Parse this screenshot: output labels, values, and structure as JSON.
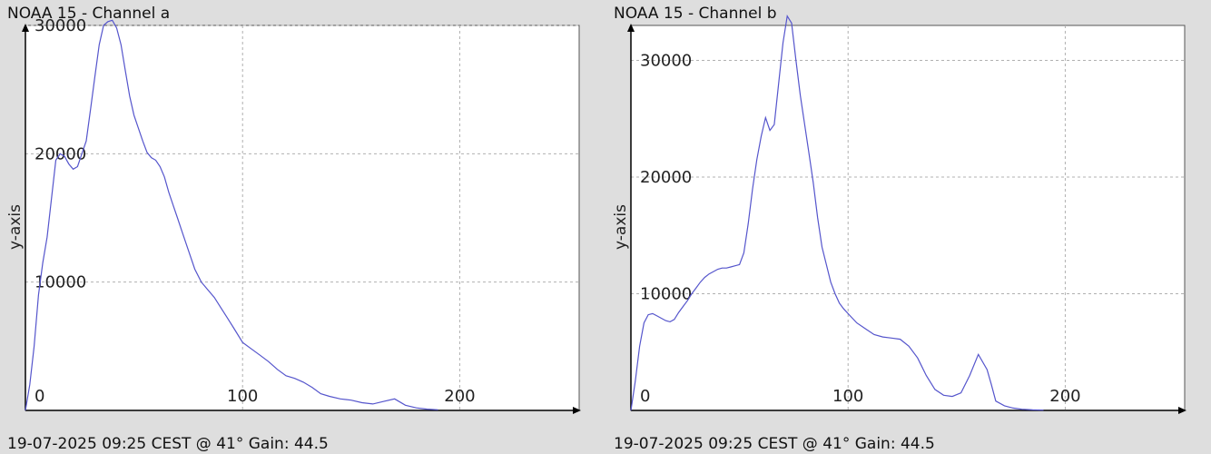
{
  "accent_color": "#5555cc",
  "chart_data": [
    {
      "type": "line",
      "title": "NOAA 15 - Channel a",
      "ylabel": "y-axis",
      "footer": "19-07-2025 09:25 CEST @ 41° Gain: 44.5",
      "xlim": [
        0,
        255
      ],
      "ylim": [
        0,
        30000
      ],
      "x_ticks": [
        0,
        100,
        200
      ],
      "y_ticks": [
        10000,
        20000,
        30000
      ],
      "grid": true,
      "series": [
        {
          "x": [
            0,
            2,
            4,
            6,
            8,
            10,
            12,
            14,
            16,
            18,
            20,
            22,
            24,
            26,
            28,
            30,
            32,
            34,
            36,
            38,
            40,
            42,
            44,
            46,
            48,
            50,
            52,
            54,
            56,
            58,
            60,
            62,
            64,
            66,
            68,
            70,
            72,
            75,
            78,
            81,
            84,
            87,
            90,
            93,
            96,
            100,
            104,
            108,
            112,
            116,
            120,
            124,
            128,
            132,
            136,
            140,
            145,
            150,
            155,
            160,
            165,
            170,
            175,
            180,
            185,
            190
          ],
          "values": [
            0,
            2000,
            5000,
            9000,
            11500,
            13500,
            16500,
            19500,
            20000,
            19800,
            19200,
            18800,
            19000,
            20000,
            21000,
            23500,
            26000,
            28500,
            30000,
            30300,
            30400,
            29800,
            28500,
            26500,
            24500,
            23000,
            22000,
            21000,
            20100,
            19700,
            19500,
            19000,
            18200,
            17000,
            16000,
            15000,
            14000,
            12500,
            11000,
            10000,
            9400,
            8800,
            8000,
            7200,
            6400,
            5300,
            4800,
            4300,
            3800,
            3200,
            2700,
            2500,
            2200,
            1800,
            1300,
            1100,
            900,
            800,
            600,
            500,
            700,
            900,
            400,
            200,
            100,
            50
          ]
        }
      ]
    },
    {
      "type": "line",
      "title": "NOAA 15 - Channel b",
      "ylabel": "y-axis",
      "footer": "19-07-2025 09:25 CEST @ 41° Gain: 44.5",
      "xlim": [
        0,
        255
      ],
      "ylim": [
        0,
        33000
      ],
      "x_ticks": [
        0,
        100,
        200
      ],
      "y_ticks": [
        10000,
        20000,
        30000
      ],
      "grid": true,
      "series": [
        {
          "x": [
            0,
            2,
            4,
            6,
            8,
            10,
            12,
            14,
            16,
            18,
            20,
            22,
            24,
            26,
            28,
            30,
            32,
            34,
            36,
            38,
            40,
            42,
            44,
            46,
            48,
            50,
            52,
            54,
            56,
            58,
            60,
            62,
            64,
            66,
            68,
            70,
            72,
            74,
            76,
            78,
            80,
            82,
            84,
            86,
            88,
            90,
            92,
            94,
            96,
            98,
            100,
            104,
            108,
            112,
            116,
            120,
            124,
            128,
            132,
            136,
            140,
            144,
            148,
            152,
            156,
            160,
            164,
            166,
            168,
            172,
            176,
            180,
            185,
            190
          ],
          "values": [
            0,
            2500,
            5500,
            7500,
            8200,
            8300,
            8100,
            7900,
            7700,
            7600,
            7800,
            8400,
            8900,
            9400,
            10000,
            10500,
            11000,
            11400,
            11700,
            11900,
            12100,
            12200,
            12200,
            12300,
            12400,
            12500,
            13500,
            16000,
            19000,
            21500,
            23500,
            25100,
            24000,
            24500,
            28000,
            31500,
            33800,
            33200,
            30000,
            27000,
            24500,
            22000,
            19500,
            16500,
            14000,
            12500,
            11000,
            10000,
            9200,
            8700,
            8300,
            7500,
            7000,
            6500,
            6300,
            6200,
            6100,
            5500,
            4500,
            3000,
            1800,
            1300,
            1200,
            1500,
            3000,
            4800,
            3500,
            2200,
            800,
            400,
            200,
            100,
            50,
            20
          ]
        }
      ]
    }
  ]
}
